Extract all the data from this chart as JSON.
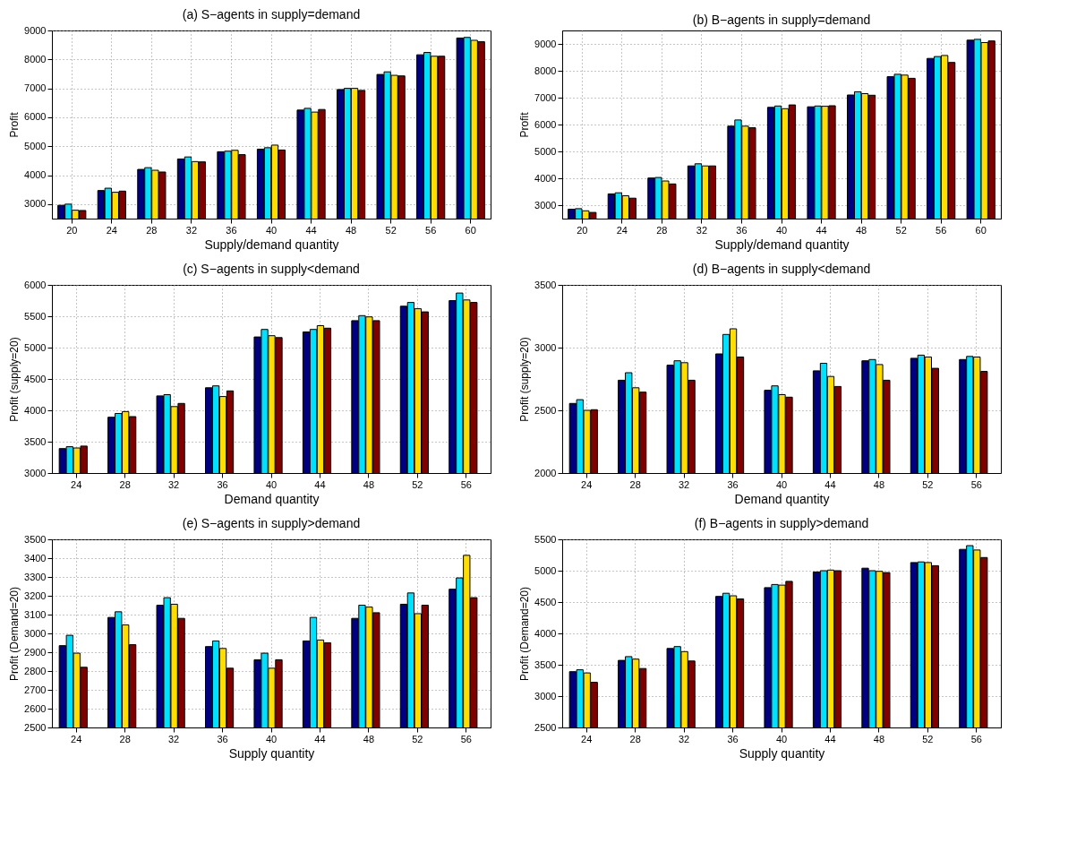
{
  "chart_data": [
    {
      "type": "bar",
      "title": "(a) S−agents in supply=demand",
      "xlabel": "Supply/demand quantity",
      "ylabel": "Profit",
      "categories": [
        "20",
        "24",
        "28",
        "32",
        "36",
        "40",
        "44",
        "48",
        "52",
        "56",
        "60"
      ],
      "ylim": [
        2500,
        9000
      ],
      "yticks": [
        3000,
        4000,
        5000,
        6000,
        7000,
        8000,
        9000
      ],
      "grid": true,
      "series": [
        {
          "color": "#000080",
          "values": [
            2960,
            3470,
            4200,
            4560,
            4810,
            4900,
            6250,
            6960,
            7480,
            8160,
            8740
          ]
        },
        {
          "color": "#00e0ff",
          "values": [
            3000,
            3550,
            4260,
            4630,
            4830,
            4950,
            6310,
            7000,
            7570,
            8240,
            8760
          ]
        },
        {
          "color": "#ffdd00",
          "values": [
            2790,
            3410,
            4170,
            4470,
            4860,
            5040,
            6180,
            7000,
            7450,
            8110,
            8660
          ]
        },
        {
          "color": "#800000",
          "values": [
            2780,
            3450,
            4110,
            4460,
            4710,
            4870,
            6270,
            6930,
            7430,
            8110,
            8610
          ]
        }
      ]
    },
    {
      "type": "bar",
      "title": "(b) B−agents in supply=demand",
      "xlabel": "Supply/demand quantity",
      "ylabel": "Profit",
      "categories": [
        "20",
        "24",
        "28",
        "32",
        "36",
        "40",
        "44",
        "48",
        "52",
        "56",
        "60"
      ],
      "ylim": [
        2500,
        9500
      ],
      "yticks": [
        3000,
        4000,
        5000,
        6000,
        7000,
        8000,
        9000
      ],
      "grid": true,
      "series": [
        {
          "color": "#000080",
          "values": [
            2850,
            3420,
            4010,
            4460,
            5940,
            6640,
            6660,
            7100,
            7780,
            8460,
            9140
          ]
        },
        {
          "color": "#00e0ff",
          "values": [
            2870,
            3460,
            4030,
            4540,
            6170,
            6690,
            6690,
            7220,
            7870,
            8530,
            9170
          ]
        },
        {
          "color": "#ffdd00",
          "values": [
            2790,
            3350,
            3900,
            4460,
            5940,
            6590,
            6680,
            7150,
            7840,
            8570,
            9050
          ]
        },
        {
          "color": "#800000",
          "values": [
            2730,
            3260,
            3790,
            4460,
            5880,
            6730,
            6700,
            7090,
            7720,
            8310,
            9110
          ]
        }
      ]
    },
    {
      "type": "bar",
      "title": "(c) S−agents in supply<demand",
      "xlabel": "Demand quantity",
      "ylabel": "Profit (supply=20)",
      "categories": [
        "24",
        "28",
        "32",
        "36",
        "40",
        "44",
        "48",
        "52",
        "56"
      ],
      "ylim": [
        3000,
        6000
      ],
      "yticks": [
        3000,
        3500,
        4000,
        4500,
        5000,
        5500,
        6000
      ],
      "grid": true,
      "series": [
        {
          "color": "#000080",
          "values": [
            3390,
            3890,
            4230,
            4360,
            5170,
            5250,
            5430,
            5660,
            5750
          ]
        },
        {
          "color": "#00e0ff",
          "values": [
            3420,
            3950,
            4250,
            4390,
            5290,
            5290,
            5510,
            5720,
            5870
          ]
        },
        {
          "color": "#ffdd00",
          "values": [
            3400,
            3980,
            4060,
            4220,
            5190,
            5350,
            5490,
            5620,
            5760
          ]
        },
        {
          "color": "#800000",
          "values": [
            3430,
            3900,
            4110,
            4310,
            5160,
            5310,
            5430,
            5570,
            5720
          ]
        }
      ]
    },
    {
      "type": "bar",
      "title": "(d) B−agents in supply<demand",
      "xlabel": "Demand quantity",
      "ylabel": "Profit (supply=20)",
      "categories": [
        "24",
        "28",
        "32",
        "36",
        "40",
        "44",
        "48",
        "52",
        "56"
      ],
      "ylim": [
        2000,
        3500
      ],
      "yticks": [
        2000,
        2500,
        3000,
        3500
      ],
      "grid": true,
      "series": [
        {
          "color": "#000080",
          "values": [
            2555,
            2740,
            2860,
            2950,
            2660,
            2815,
            2895,
            2915,
            2905
          ]
        },
        {
          "color": "#00e0ff",
          "values": [
            2585,
            2800,
            2895,
            3105,
            2695,
            2875,
            2905,
            2940,
            2930
          ]
        },
        {
          "color": "#ffdd00",
          "values": [
            2500,
            2680,
            2880,
            3150,
            2625,
            2770,
            2865,
            2925,
            2925
          ]
        },
        {
          "color": "#800000",
          "values": [
            2505,
            2645,
            2740,
            2925,
            2605,
            2690,
            2740,
            2835,
            2810
          ]
        }
      ]
    },
    {
      "type": "bar",
      "title": "(e) S−agents in supply>demand",
      "xlabel": "Supply quantity",
      "ylabel": "Profit (Demand=20)",
      "categories": [
        "24",
        "28",
        "32",
        "36",
        "40",
        "44",
        "48",
        "52",
        "56"
      ],
      "ylim": [
        2500,
        3500
      ],
      "yticks": [
        2500,
        2600,
        2700,
        2800,
        2900,
        3000,
        3100,
        3200,
        3300,
        3400,
        3500
      ],
      "grid": true,
      "series": [
        {
          "color": "#000080",
          "values": [
            2935,
            3085,
            3150,
            2930,
            2860,
            2960,
            3080,
            3155,
            3235
          ]
        },
        {
          "color": "#00e0ff",
          "values": [
            2990,
            3115,
            3190,
            2960,
            2895,
            3085,
            3150,
            3215,
            3295
          ]
        },
        {
          "color": "#ffdd00",
          "values": [
            2895,
            3045,
            3155,
            2920,
            2815,
            2965,
            3140,
            3105,
            3415
          ]
        },
        {
          "color": "#800000",
          "values": [
            2820,
            2940,
            3080,
            2815,
            2860,
            2950,
            3110,
            3150,
            3190
          ]
        }
      ]
    },
    {
      "type": "bar",
      "title": "(f) B−agents in supply>demand",
      "xlabel": "Supply quantity",
      "ylabel": "Profit (Demand=20)",
      "categories": [
        "24",
        "28",
        "32",
        "36",
        "40",
        "44",
        "48",
        "52",
        "56"
      ],
      "ylim": [
        2500,
        5500
      ],
      "yticks": [
        2500,
        3000,
        3500,
        4000,
        4500,
        5000,
        5500
      ],
      "grid": true,
      "series": [
        {
          "color": "#000080",
          "values": [
            3390,
            3570,
            3760,
            4590,
            4730,
            4980,
            5040,
            5130,
            5340
          ]
        },
        {
          "color": "#00e0ff",
          "values": [
            3420,
            3630,
            3790,
            4640,
            4780,
            5000,
            5000,
            5140,
            5400
          ]
        },
        {
          "color": "#ffdd00",
          "values": [
            3370,
            3590,
            3710,
            4600,
            4770,
            5010,
            4990,
            5130,
            5330
          ]
        },
        {
          "color": "#800000",
          "values": [
            3220,
            3440,
            3560,
            4550,
            4830,
            5000,
            4970,
            5080,
            5210
          ]
        }
      ]
    }
  ]
}
